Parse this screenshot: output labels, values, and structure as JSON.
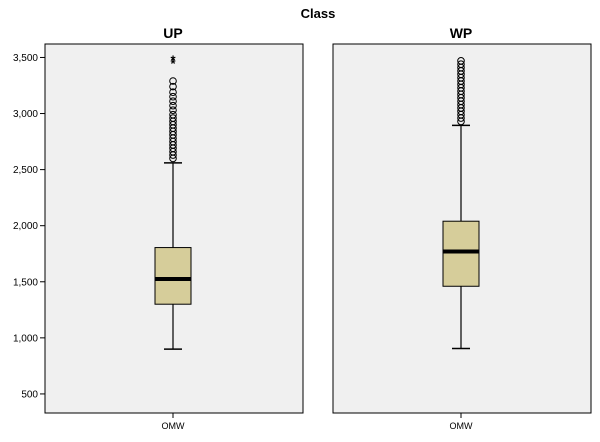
{
  "chart_data": {
    "type": "boxplot",
    "title": "Class",
    "xlabel": "",
    "ylabel": "",
    "ylim": [
      330,
      3620
    ],
    "yticks": [
      500,
      1000,
      1500,
      2000,
      2500,
      3000,
      3500
    ],
    "ytick_labels": [
      "500",
      "1,000",
      "1,500",
      "2,000",
      "2,500",
      "3,000",
      "3,500"
    ],
    "grid": false,
    "box_color": "#d6cd9a",
    "panel_background": "#f0f0f0",
    "panels": [
      {
        "title": "UP",
        "category": "OMW",
        "min": 900,
        "q1": 1300,
        "median": 1525,
        "q3": 1805,
        "whisker_high": 2560,
        "outliers": [
          2600,
          2630,
          2660,
          2690,
          2720,
          2750,
          2780,
          2810,
          2840,
          2870,
          2900,
          2930,
          2960,
          2990,
          3030,
          3070,
          3110,
          3150,
          3190,
          3240,
          3290
        ],
        "extremes": [
          3450,
          3480
        ]
      },
      {
        "title": "WP",
        "category": "OMW",
        "min": 905,
        "q1": 1460,
        "median": 1770,
        "q3": 2040,
        "whisker_high": 2895,
        "outliers": [
          2930,
          2960,
          2990,
          3020,
          3050,
          3080,
          3110,
          3140,
          3170,
          3200,
          3230,
          3260,
          3290,
          3320,
          3350,
          3380,
          3410,
          3440,
          3470
        ],
        "extremes": []
      }
    ]
  }
}
